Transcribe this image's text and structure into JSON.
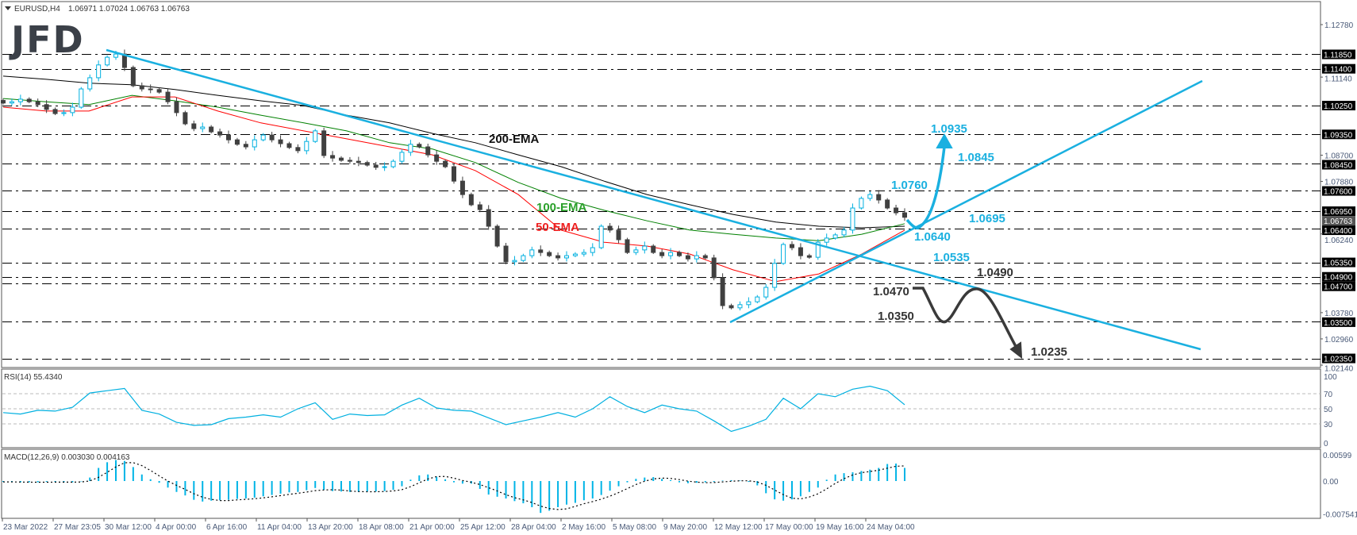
{
  "header": {
    "menu_icon": "triangle-down-icon",
    "symbol": "EURUSD,H4",
    "ohlc": "1.06971 1.07024 1.06763 1.06763"
  },
  "logo": {
    "text": "JFD"
  },
  "colors": {
    "bull": "#00b0e0",
    "bear": "#404040",
    "ema50": "#ff0000",
    "ema100": "#008000",
    "ema200": "#000000",
    "trend": "#1ab0e0",
    "bearish_path": "#3a3a3a",
    "histogram": "#00b4e6"
  },
  "chart_data": [
    {
      "type": "line",
      "title": "EURUSD,H4",
      "series_kind": "candlestick",
      "closes": [
        1.1033,
        1.1037,
        1.1045,
        1.1037,
        1.1028,
        1.1013,
        1.1,
        1.1003,
        1.102,
        1.1077,
        1.1112,
        1.1152,
        1.1176,
        1.1186,
        1.1144,
        1.1087,
        1.1077,
        1.1075,
        1.1067,
        1.1037,
        1.1003,
        1.0968,
        1.0953,
        1.0958,
        1.0943,
        1.0933,
        1.0918,
        1.0904,
        1.0896,
        1.0918,
        1.0933,
        1.0918,
        1.0906,
        1.0894,
        1.0884,
        1.0913,
        1.0946,
        1.0869,
        1.0861,
        1.0854,
        1.0851,
        1.0847,
        1.0839,
        1.0832,
        1.0834,
        1.0851,
        1.0879,
        1.0904,
        1.0896,
        1.0871,
        1.0851,
        1.0834,
        1.0789,
        1.0747,
        1.0715,
        1.07,
        1.0648,
        1.0586,
        1.0537,
        1.0541,
        1.0556,
        1.0574,
        1.0566,
        1.0556,
        1.0549,
        1.0556,
        1.0561,
        1.0566,
        1.0581,
        1.0648,
        1.0636,
        1.0606,
        1.0566,
        1.0574,
        1.0586,
        1.0566,
        1.0556,
        1.0566,
        1.0556,
        1.0546,
        1.0556,
        1.0549,
        1.0487,
        1.04,
        1.0393,
        1.0403,
        1.0412,
        1.0427,
        1.0457,
        1.0532,
        1.0591,
        1.0581,
        1.0556,
        1.0551,
        1.0598,
        1.0611,
        1.0621,
        1.0636,
        1.0705,
        1.0735,
        1.0747,
        1.073,
        1.0705,
        1.069,
        1.0676
      ],
      "ema": [
        {
          "name": "200-EMA",
          "values": [
            1.1117,
            1.1107,
            1.1095,
            1.109,
            1.1075,
            1.1057,
            1.104,
            1.1025,
            1.0995,
            1.0971,
            1.0938,
            1.0909,
            1.0871,
            1.0834,
            1.0789,
            1.0747,
            1.0715,
            1.0685,
            1.0661,
            1.0648,
            1.0643,
            1.0648
          ]
        },
        {
          "name": "100-EMA",
          "values": [
            1.1047,
            1.1037,
            1.1028,
            1.1057,
            1.104,
            1.102,
            1.0995,
            1.0971,
            1.0946,
            1.0909,
            1.0889,
            1.0847,
            1.0785,
            1.0735,
            1.0698,
            1.0665,
            1.0636,
            1.0623,
            1.0611,
            1.0603,
            1.0623,
            1.0656
          ]
        },
        {
          "name": "50-EMA",
          "values": [
            1.102,
            1.1008,
            1.1008,
            1.1052,
            1.1052,
            1.1008,
            1.0971,
            1.0946,
            1.0921,
            1.0896,
            1.0871,
            1.0822,
            1.0747,
            1.0636,
            1.0598,
            1.0586,
            1.0561,
            1.0512,
            1.0475,
            1.0499,
            1.0561,
            1.0636
          ]
        }
      ],
      "levels": [
        1.1185,
        1.114,
        1.1025,
        1.0935,
        1.0845,
        1.076,
        1.0695,
        1.064,
        1.0535,
        1.049,
        1.047,
        1.035,
        1.0235
      ],
      "level_labels": [
        "1.11850",
        "1.11400",
        "1.10250",
        "1.09350",
        "1.08450",
        "1.07600",
        "1.06950",
        "1.06400",
        "1.05350",
        "1.04900",
        "1.04700",
        "1.03500",
        "1.02350"
      ],
      "y_ticks": [
        1.1278,
        1.1114,
        1.087,
        1.0788,
        1.0624,
        1.0378,
        1.0296,
        1.0214
      ],
      "y_tick_labels": [
        "1.12780",
        "1.11140",
        "1.08700",
        "1.07880",
        "1.06240",
        "1.03780",
        "1.02960",
        "1.02140"
      ],
      "ylim": [
        1.0214,
        1.1278
      ],
      "current_price": 1.06763,
      "current_price_label": "1.06763",
      "x_tick_labels": [
        "23 Mar 2022",
        "27 Mar 23:05",
        "30 Mar 12:00",
        "4 Apr 00:00",
        "6 Apr 16:00",
        "11 Apr 04:00",
        "13 Apr 20:00",
        "18 Apr 08:00",
        "21 Apr 00:00",
        "25 Apr 12:00",
        "28 Apr 04:00",
        "2 May 16:00",
        "5 May 08:00",
        "9 May 20:00",
        "12 May 12:00",
        "17 May 00:00",
        "19 May 16:00",
        "24 May 04:00"
      ],
      "annotations": {
        "ema200": "200-EMA",
        "ema100": "100-EMA",
        "ema50": "50-EMA",
        "a1": "1.0935",
        "a2": "1.0845",
        "a3": "1.0760",
        "a4": "1.0695",
        "a5": "1.0640",
        "a6": "1.0535",
        "a7": "1.0490",
        "a8": "1.0470",
        "a9": "1.0350",
        "a10": "1.0235"
      }
    },
    {
      "type": "line",
      "title": "RSI(14) 55.4340",
      "values": [
        45,
        43,
        48,
        47,
        52,
        71,
        74,
        77,
        48,
        43,
        32,
        28,
        29,
        37,
        39,
        42,
        39,
        50,
        58,
        36,
        43,
        41,
        42,
        55,
        64,
        51,
        48,
        47,
        38,
        29,
        34,
        39,
        45,
        39,
        50,
        66,
        53,
        45,
        55,
        50,
        47,
        34,
        20,
        27,
        36,
        64,
        50,
        70,
        66,
        76,
        80,
        74,
        55.4
      ],
      "levels": [
        70,
        50,
        30
      ],
      "y_ticks": [
        100,
        70,
        50,
        30,
        0
      ],
      "ylim": [
        0,
        100
      ]
    },
    {
      "type": "bar",
      "title": "MACD(12,26,9) 0.003030 0.004163",
      "histogram": [
        -0.0002,
        -0.0002,
        -0.0003,
        -0.0003,
        -0.0003,
        -0.0002,
        -0.0002,
        -0.0003,
        -0.0003,
        -0.0001,
        0.0008,
        0.003,
        0.0043,
        0.0048,
        0.0046,
        0.0032,
        0.0015,
        0.0004,
        -0.0004,
        -0.0015,
        -0.0025,
        -0.0033,
        -0.0043,
        -0.0047,
        -0.0045,
        -0.0044,
        -0.0043,
        -0.0041,
        -0.004,
        -0.0038,
        -0.0035,
        -0.0032,
        -0.0029,
        -0.0026,
        -0.0025,
        -0.0021,
        -0.0016,
        -0.002,
        -0.0023,
        -0.0024,
        -0.0025,
        -0.0025,
        -0.0024,
        -0.0024,
        -0.0023,
        -0.002,
        -0.0012,
        0.0003,
        0.0013,
        0.0015,
        0.001,
        0.0004,
        -0.0003,
        -0.0006,
        -0.0006,
        -0.0018,
        -0.0031,
        -0.0036,
        -0.004,
        -0.0046,
        -0.0051,
        -0.006,
        -0.0073,
        -0.0068,
        -0.006,
        -0.0054,
        -0.005,
        -0.0044,
        -0.004,
        -0.0032,
        -0.0022,
        -0.0012,
        -0.0003,
        0.0005,
        0.0008,
        0.0009,
        0.0005,
        0.0002,
        -0.0003,
        -0.0005,
        -0.0004,
        -0.0003,
        -0.0002,
        0.0001,
        0.0002,
        0.0001,
        -0.0002,
        -0.001,
        -0.0028,
        -0.0042,
        -0.0045,
        -0.0042,
        -0.0035,
        -0.0025,
        -0.0015,
        0.0003,
        0.0015,
        0.0018,
        0.002,
        0.0023,
        0.0026,
        0.003,
        0.0039,
        0.004,
        0.003
      ],
      "y_tick_labels": [
        "0.00599",
        "0.00",
        "-0.007541"
      ],
      "y_ticks": [
        0.00599,
        0,
        -0.007541
      ],
      "ylim": [
        -0.007541,
        0.00599
      ]
    }
  ]
}
